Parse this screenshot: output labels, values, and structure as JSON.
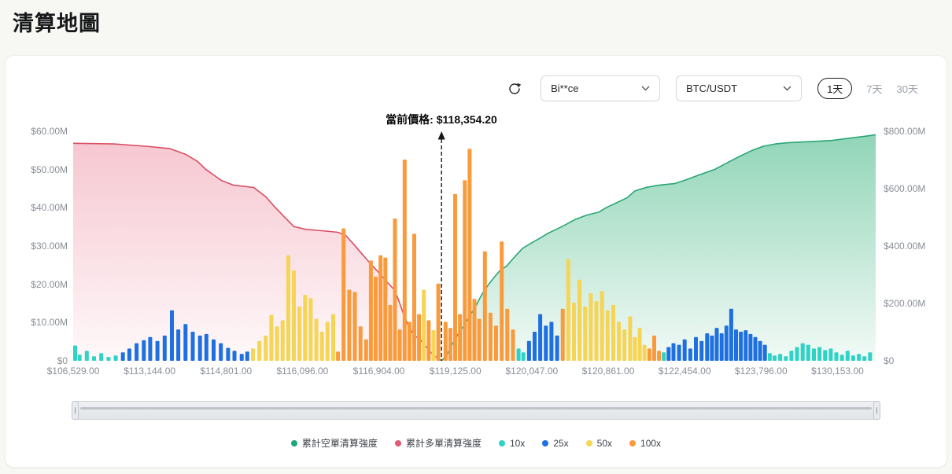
{
  "page": {
    "title": "清算地圖"
  },
  "toolbar": {
    "exchange_select": "Bi**ce",
    "pair_select": "BTC/USDT",
    "ranges": [
      {
        "label": "1天",
        "active": true
      },
      {
        "label": "7天",
        "active": false
      },
      {
        "label": "30天",
        "active": false
      }
    ]
  },
  "chart_data": {
    "type": "bar",
    "subtype": "liquidation map: leverage bars (left axis) + cumulative liquidation intensity areas (right axis)",
    "current_price_label": "當前價格: $118,354.20",
    "current_price_value": 118354.2,
    "current_price_fraction": 0.459,
    "left_axis": {
      "max": 60,
      "unit": "$M",
      "ticks": [
        "$60.00M",
        "$50.00M",
        "$40.00M",
        "$30.00M",
        "$20.00M",
        "$10.00M",
        "$0"
      ]
    },
    "right_axis": {
      "max": 800,
      "unit": "$M",
      "ticks": [
        "$800.00M",
        "$600.00M",
        "$400.00M",
        "$200.00M",
        "$0"
      ]
    },
    "x_ticks": [
      "$106,529.00",
      "$113,144.00",
      "$114,801.00",
      "$116,096.00",
      "$116,904.00",
      "$119,125.00",
      "$120,047.00",
      "$120,861.00",
      "$122,454.00",
      "$123,796.00",
      "$130,153.00"
    ],
    "leverage_colors": {
      "10x": "#2ed3c5",
      "25x": "#1e6fe0",
      "50x": "#f6d455",
      "100x": "#f99a3c"
    },
    "legend": [
      {
        "label": "累計空單清算強度",
        "color": "#1ca878"
      },
      {
        "label": "累計多單清算強度",
        "color": "#e05a74"
      },
      {
        "label": "10x",
        "color": "#2ed3c5"
      },
      {
        "label": "25x",
        "color": "#1e6fe0"
      },
      {
        "label": "50x",
        "color": "#f6d455"
      },
      {
        "label": "100x",
        "color": "#f99a3c"
      }
    ],
    "cumulative_long": {
      "name": "累計多單清算強度",
      "axis": "right",
      "line_color": "#d94f63",
      "fill_color": "#ee8fa2",
      "points": [
        [
          0,
          758
        ],
        [
          0.05,
          756
        ],
        [
          0.09,
          748
        ],
        [
          0.12,
          740
        ],
        [
          0.14,
          720
        ],
        [
          0.155,
          695
        ],
        [
          0.165,
          668
        ],
        [
          0.175,
          648
        ],
        [
          0.185,
          628
        ],
        [
          0.2,
          612
        ],
        [
          0.225,
          604
        ],
        [
          0.24,
          572
        ],
        [
          0.25,
          540
        ],
        [
          0.262,
          505
        ],
        [
          0.275,
          468
        ],
        [
          0.29,
          458
        ],
        [
          0.315,
          452
        ],
        [
          0.33,
          448
        ],
        [
          0.34,
          436
        ],
        [
          0.35,
          405
        ],
        [
          0.36,
          372
        ],
        [
          0.37,
          340
        ],
        [
          0.38,
          310
        ],
        [
          0.39,
          278
        ],
        [
          0.4,
          248
        ],
        [
          0.405,
          215
        ],
        [
          0.412,
          160
        ],
        [
          0.418,
          120
        ],
        [
          0.425,
          88
        ],
        [
          0.432,
          76
        ],
        [
          0.44,
          48
        ],
        [
          0.448,
          22
        ],
        [
          0.455,
          8
        ],
        [
          0.459,
          0
        ]
      ]
    },
    "cumulative_short": {
      "name": "累計空單清算強度",
      "axis": "right",
      "line_color": "#2aa674",
      "fill_color": "#45b886",
      "points": [
        [
          0.459,
          0
        ],
        [
          0.465,
          18
        ],
        [
          0.472,
          55
        ],
        [
          0.48,
          95
        ],
        [
          0.488,
          128
        ],
        [
          0.495,
          160
        ],
        [
          0.503,
          198
        ],
        [
          0.51,
          235
        ],
        [
          0.518,
          268
        ],
        [
          0.525,
          292
        ],
        [
          0.532,
          315
        ],
        [
          0.54,
          330
        ],
        [
          0.55,
          362
        ],
        [
          0.56,
          392
        ],
        [
          0.572,
          412
        ],
        [
          0.582,
          428
        ],
        [
          0.592,
          445
        ],
        [
          0.602,
          458
        ],
        [
          0.612,
          472
        ],
        [
          0.625,
          492
        ],
        [
          0.64,
          508
        ],
        [
          0.655,
          518
        ],
        [
          0.665,
          535
        ],
        [
          0.678,
          552
        ],
        [
          0.69,
          568
        ],
        [
          0.7,
          592
        ],
        [
          0.715,
          605
        ],
        [
          0.73,
          612
        ],
        [
          0.75,
          618
        ],
        [
          0.765,
          632
        ],
        [
          0.78,
          648
        ],
        [
          0.8,
          668
        ],
        [
          0.815,
          690
        ],
        [
          0.83,
          712
        ],
        [
          0.845,
          732
        ],
        [
          0.86,
          748
        ],
        [
          0.875,
          756
        ],
        [
          0.89,
          760
        ],
        [
          0.92,
          764
        ],
        [
          0.945,
          768
        ],
        [
          0.965,
          775
        ],
        [
          0.985,
          782
        ],
        [
          1,
          788
        ]
      ]
    },
    "bars_axis": "left",
    "bars": [
      [
        0.0,
        4.0,
        "10x"
      ],
      [
        0.008,
        1.6,
        "10x"
      ],
      [
        0.017,
        2.6,
        "10x"
      ],
      [
        0.026,
        1.2,
        "10x"
      ],
      [
        0.035,
        2.0,
        "10x"
      ],
      [
        0.044,
        1.0,
        "10x"
      ],
      [
        0.053,
        1.4,
        "10x"
      ],
      [
        0.062,
        2.2,
        "25x"
      ],
      [
        0.07,
        3.2,
        "25x"
      ],
      [
        0.079,
        4.6,
        "25x"
      ],
      [
        0.088,
        5.4,
        "25x"
      ],
      [
        0.096,
        6.2,
        "25x"
      ],
      [
        0.105,
        5.2,
        "25x"
      ],
      [
        0.114,
        6.6,
        "25x"
      ],
      [
        0.123,
        13.2,
        "25x"
      ],
      [
        0.131,
        8.2,
        "25x"
      ],
      [
        0.14,
        9.6,
        "25x"
      ],
      [
        0.149,
        7.6,
        "25x"
      ],
      [
        0.158,
        6.6,
        "25x"
      ],
      [
        0.166,
        7.0,
        "25x"
      ],
      [
        0.175,
        5.6,
        "25x"
      ],
      [
        0.184,
        4.6,
        "25x"
      ],
      [
        0.193,
        3.4,
        "25x"
      ],
      [
        0.201,
        2.6,
        "25x"
      ],
      [
        0.21,
        1.8,
        "25x"
      ],
      [
        0.217,
        2.4,
        "25x"
      ],
      [
        0.224,
        3.2,
        "50x"
      ],
      [
        0.232,
        5.2,
        "50x"
      ],
      [
        0.24,
        6.6,
        "50x"
      ],
      [
        0.247,
        12.0,
        "50x"
      ],
      [
        0.254,
        9.0,
        "50x"
      ],
      [
        0.261,
        10.6,
        "50x"
      ],
      [
        0.268,
        27.6,
        "50x"
      ],
      [
        0.275,
        23.6,
        "50x"
      ],
      [
        0.282,
        14.2,
        "50x"
      ],
      [
        0.289,
        17.2,
        "50x"
      ],
      [
        0.296,
        16.4,
        "50x"
      ],
      [
        0.303,
        11.0,
        "50x"
      ],
      [
        0.31,
        7.6,
        "50x"
      ],
      [
        0.317,
        10.2,
        "50x"
      ],
      [
        0.324,
        12.2,
        "50x"
      ],
      [
        0.33,
        2.4,
        "100x"
      ],
      [
        0.337,
        34.6,
        "100x"
      ],
      [
        0.344,
        18.6,
        "100x"
      ],
      [
        0.351,
        18.0,
        "100x"
      ],
      [
        0.358,
        9.0,
        "100x"
      ],
      [
        0.365,
        5.6,
        "100x"
      ],
      [
        0.371,
        26.2,
        "100x"
      ],
      [
        0.377,
        22.0,
        "100x"
      ],
      [
        0.383,
        27.6,
        "100x"
      ],
      [
        0.389,
        27.0,
        "100x"
      ],
      [
        0.395,
        14.6,
        "100x"
      ],
      [
        0.401,
        37.2,
        "100x"
      ],
      [
        0.407,
        8.2,
        "100x"
      ],
      [
        0.413,
        52.6,
        "100x"
      ],
      [
        0.419,
        10.2,
        "100x"
      ],
      [
        0.425,
        33.2,
        "100x"
      ],
      [
        0.431,
        12.2,
        "100x"
      ],
      [
        0.437,
        18.6,
        "50x"
      ],
      [
        0.443,
        10.6,
        "100x"
      ],
      [
        0.449,
        8.0,
        "50x"
      ],
      [
        0.455,
        20.2,
        "100x"
      ],
      [
        0.464,
        10.2,
        "100x"
      ],
      [
        0.47,
        8.6,
        "100x"
      ],
      [
        0.476,
        43.6,
        "100x"
      ],
      [
        0.482,
        12.2,
        "100x"
      ],
      [
        0.488,
        47.2,
        "100x"
      ],
      [
        0.494,
        55.4,
        "100x"
      ],
      [
        0.5,
        16.2,
        "100x"
      ],
      [
        0.506,
        11.0,
        "100x"
      ],
      [
        0.513,
        28.6,
        "100x"
      ],
      [
        0.52,
        12.6,
        "100x"
      ],
      [
        0.527,
        9.2,
        "100x"
      ],
      [
        0.534,
        31.2,
        "100x"
      ],
      [
        0.541,
        13.6,
        "100x"
      ],
      [
        0.548,
        8.2,
        "100x"
      ],
      [
        0.555,
        3.2,
        "10x"
      ],
      [
        0.561,
        2.2,
        "10x"
      ],
      [
        0.568,
        5.2,
        "25x"
      ],
      [
        0.575,
        7.6,
        "25x"
      ],
      [
        0.582,
        12.2,
        "25x"
      ],
      [
        0.589,
        9.2,
        "25x"
      ],
      [
        0.596,
        10.2,
        "25x"
      ],
      [
        0.603,
        6.6,
        "25x"
      ],
      [
        0.61,
        13.6,
        "100x"
      ],
      [
        0.617,
        26.6,
        "50x"
      ],
      [
        0.624,
        15.2,
        "50x"
      ],
      [
        0.631,
        21.2,
        "50x"
      ],
      [
        0.638,
        14.2,
        "50x"
      ],
      [
        0.645,
        17.6,
        "50x"
      ],
      [
        0.652,
        15.6,
        "50x"
      ],
      [
        0.659,
        18.2,
        "50x"
      ],
      [
        0.666,
        13.2,
        "50x"
      ],
      [
        0.673,
        14.6,
        "50x"
      ],
      [
        0.68,
        10.2,
        "50x"
      ],
      [
        0.687,
        8.2,
        "50x"
      ],
      [
        0.694,
        11.6,
        "50x"
      ],
      [
        0.7,
        6.2,
        "50x"
      ],
      [
        0.706,
        8.6,
        "50x"
      ],
      [
        0.712,
        4.2,
        "50x"
      ],
      [
        0.718,
        3.2,
        "100x"
      ],
      [
        0.724,
        6.6,
        "100x"
      ],
      [
        0.73,
        2.6,
        "100x"
      ],
      [
        0.736,
        2.2,
        "10x"
      ],
      [
        0.742,
        3.6,
        "25x"
      ],
      [
        0.748,
        4.6,
        "25x"
      ],
      [
        0.755,
        4.2,
        "25x"
      ],
      [
        0.762,
        5.6,
        "25x"
      ],
      [
        0.769,
        3.2,
        "25x"
      ],
      [
        0.776,
        6.2,
        "25x"
      ],
      [
        0.783,
        5.2,
        "25x"
      ],
      [
        0.79,
        7.2,
        "25x"
      ],
      [
        0.796,
        6.6,
        "25x"
      ],
      [
        0.802,
        8.6,
        "25x"
      ],
      [
        0.808,
        7.2,
        "25x"
      ],
      [
        0.814,
        9.2,
        "25x"
      ],
      [
        0.82,
        13.6,
        "25x"
      ],
      [
        0.826,
        8.2,
        "25x"
      ],
      [
        0.832,
        7.6,
        "25x"
      ],
      [
        0.838,
        8.0,
        "25x"
      ],
      [
        0.844,
        7.0,
        "25x"
      ],
      [
        0.85,
        6.2,
        "25x"
      ],
      [
        0.856,
        5.2,
        "25x"
      ],
      [
        0.862,
        4.2,
        "25x"
      ],
      [
        0.868,
        2.0,
        "10x"
      ],
      [
        0.874,
        1.4,
        "10x"
      ],
      [
        0.881,
        1.8,
        "10x"
      ],
      [
        0.888,
        1.2,
        "10x"
      ],
      [
        0.895,
        2.6,
        "10x"
      ],
      [
        0.902,
        3.6,
        "10x"
      ],
      [
        0.909,
        4.6,
        "10x"
      ],
      [
        0.916,
        4.2,
        "10x"
      ],
      [
        0.923,
        3.2,
        "10x"
      ],
      [
        0.93,
        3.6,
        "10x"
      ],
      [
        0.937,
        2.8,
        "10x"
      ],
      [
        0.944,
        3.2,
        "10x"
      ],
      [
        0.951,
        2.2,
        "10x"
      ],
      [
        0.958,
        1.6,
        "10x"
      ],
      [
        0.965,
        2.6,
        "10x"
      ],
      [
        0.972,
        1.4,
        "10x"
      ],
      [
        0.979,
        1.8,
        "10x"
      ],
      [
        0.986,
        1.2,
        "10x"
      ],
      [
        0.993,
        2.2,
        "10x"
      ]
    ]
  }
}
